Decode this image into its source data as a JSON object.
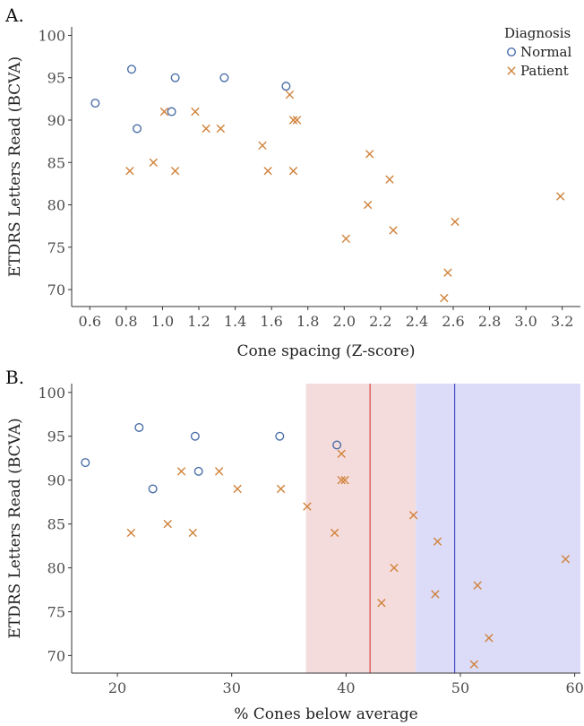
{
  "chart_data": [
    {
      "panel_label": "A.",
      "type": "scatter",
      "xlabel": "Cone spacing (Z-score)",
      "ylabel": "ETDRS Letters Read (BCVA)",
      "xlim": [
        0.5,
        3.3
      ],
      "ylim": [
        68,
        101
      ],
      "xticks": [
        "0.6",
        "0.8",
        "1.0",
        "1.2",
        "1.4",
        "1.6",
        "1.8",
        "2.0",
        "2.2",
        "2.4",
        "2.6",
        "2.8",
        "3.0",
        "3.2"
      ],
      "yticks": [
        "70",
        "75",
        "80",
        "85",
        "90",
        "95",
        "100"
      ],
      "grid": false,
      "legend": {
        "title": "Diagnosis",
        "placement": "top-right",
        "entries": [
          {
            "label": "Normal",
            "marker": "circle",
            "color": "#4a6ea8"
          },
          {
            "label": "Patient",
            "marker": "x",
            "color": "#d0823a"
          }
        ]
      },
      "series": [
        {
          "name": "Normal",
          "marker": "circle",
          "color": "#4a6ea8",
          "points": [
            [
              0.63,
              92
            ],
            [
              0.83,
              96
            ],
            [
              0.86,
              89
            ],
            [
              1.05,
              91
            ],
            [
              1.07,
              95
            ],
            [
              1.34,
              95
            ],
            [
              1.68,
              94
            ]
          ]
        },
        {
          "name": "Patient",
          "marker": "x",
          "color": "#d0823a",
          "points": [
            [
              0.82,
              84
            ],
            [
              0.95,
              85
            ],
            [
              1.01,
              91
            ],
            [
              1.07,
              84
            ],
            [
              1.18,
              91
            ],
            [
              1.24,
              89
            ],
            [
              1.32,
              89
            ],
            [
              1.55,
              87
            ],
            [
              1.58,
              84
            ],
            [
              1.7,
              93
            ],
            [
              1.72,
              90
            ],
            [
              1.74,
              90
            ],
            [
              1.72,
              84
            ],
            [
              2.01,
              76
            ],
            [
              2.13,
              80
            ],
            [
              2.14,
              86
            ],
            [
              2.25,
              83
            ],
            [
              2.27,
              77
            ],
            [
              2.55,
              69
            ],
            [
              2.57,
              72
            ],
            [
              2.61,
              78
            ],
            [
              3.19,
              81
            ]
          ]
        }
      ]
    },
    {
      "panel_label": "B.",
      "type": "scatter",
      "xlabel": "% Cones below average",
      "ylabel": "ETDRS Letters Read (BCVA)",
      "xlim": [
        16,
        60.5
      ],
      "ylim": [
        68,
        101
      ],
      "xticks": [
        "20",
        "30",
        "40",
        "50",
        "60"
      ],
      "yticks": [
        "70",
        "75",
        "80",
        "85",
        "90",
        "95",
        "100"
      ],
      "grid": false,
      "shaded_regions": [
        {
          "x_range": [
            36.5,
            46.1
          ],
          "color": "#f5dcdc",
          "center_line": 42.1,
          "line_color": "#d9464a"
        },
        {
          "x_range": [
            46.1,
            60.5
          ],
          "color": "#dcdcf8",
          "center_line": 49.5,
          "line_color": "#4a4ac8"
        }
      ],
      "series": [
        {
          "name": "Normal",
          "marker": "circle",
          "color": "#4a6ea8",
          "points": [
            [
              17.2,
              92
            ],
            [
              21.9,
              96
            ],
            [
              23.1,
              89
            ],
            [
              26.8,
              95
            ],
            [
              27.1,
              91
            ],
            [
              34.2,
              95
            ],
            [
              39.2,
              94
            ]
          ]
        },
        {
          "name": "Patient",
          "marker": "x",
          "color": "#d0823a",
          "points": [
            [
              21.2,
              84
            ],
            [
              24.4,
              85
            ],
            [
              25.6,
              91
            ],
            [
              26.6,
              84
            ],
            [
              28.9,
              91
            ],
            [
              30.5,
              89
            ],
            [
              34.3,
              89
            ],
            [
              36.6,
              87
            ],
            [
              39.0,
              84
            ],
            [
              39.6,
              93
            ],
            [
              39.6,
              90
            ],
            [
              39.9,
              90
            ],
            [
              43.1,
              76
            ],
            [
              44.2,
              80
            ],
            [
              45.9,
              86
            ],
            [
              47.8,
              77
            ],
            [
              48.0,
              83
            ],
            [
              51.2,
              69
            ],
            [
              51.5,
              78
            ],
            [
              52.5,
              72
            ],
            [
              59.2,
              81
            ]
          ]
        }
      ]
    }
  ]
}
